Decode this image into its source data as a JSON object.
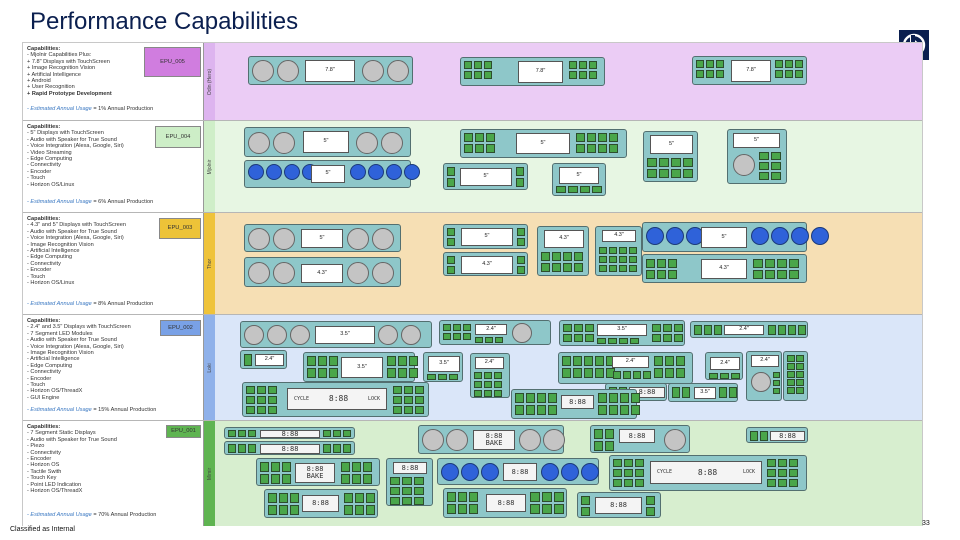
{
  "title": "Performance Capabilities",
  "footer": "Classified as Internal",
  "page_number": "33",
  "rows": [
    {
      "epu": "EPU_005",
      "strip_label": "Odin (Hero)",
      "band_color": "#ebccf5",
      "strip_color": "#ddb4ef",
      "epu_color": "#d07ddf",
      "caps_title": "Capabilities:",
      "caps": [
        "- Mjolnir Capabilities Plus:",
        "+ 7.8\" Displays with TouchScreen",
        "+ Image Recognition Vision",
        "+ Artificial Intelligence",
        "+ Android",
        "+ User Recognition"
      ],
      "caps_bold": "+ Rapid Prototype Development",
      "usage_label": "- Estimated Annual Usage",
      "usage_value": " = 1% Annual Production"
    },
    {
      "epu": "EPU_004",
      "strip_label": "Mjolnir",
      "band_color": "#e7f6e3",
      "strip_color": "#cfeec8",
      "epu_color": "#cdeec7",
      "caps_title": "Capabilities:",
      "caps": [
        "- 5\" Displays with TouchScreen",
        "- Audio with Speaker for True Sound",
        "- Voice Integration (Alexa, Google, Siri)",
        "- Video Streaming",
        "- Edge Computing",
        "- Connectivity",
        "- Encoder",
        "- Touch",
        "- Horizon OS/Linux"
      ],
      "caps_bold": "",
      "usage_label": "- Estimated Annual Usage",
      "usage_value": " = 6% Annual Production"
    },
    {
      "epu": "EPU_003",
      "strip_label": "Thor",
      "band_color": "#f6dfb4",
      "strip_color": "#efc33a",
      "epu_color": "#edc338",
      "caps_title": "Capabilities:",
      "caps": [
        "- 4.3\" and 5\" Displays with TouchScreen",
        "- Audio with Speaker for True Sound",
        "- Voice Integration (Alexa, Google, Siri)",
        "- Image Recognition Vision",
        "- Artificial Intelligence",
        "- Edge Computing",
        "- Connectivity",
        "- Encoder",
        "- Touch",
        "- Horizon OS/Linux"
      ],
      "caps_bold": "",
      "usage_label": "- Estimated Annual Usage",
      "usage_value": " = 8% Annual Production"
    },
    {
      "epu": "EPU_002",
      "strip_label": "Loki",
      "band_color": "#dae6f9",
      "strip_color": "#8fb1ea",
      "epu_color": "#79a1e6",
      "caps_title": "Capabilities:",
      "caps": [
        "- 2.4\" and 3.5\" Displays with TouchScreen",
        "- 7 Segment LED Modules",
        "- Audio with Speaker for True Sound",
        "- Voice Integration (Alexa, Google, Siri)",
        "- Image Recognition Vision",
        "- Artificial Intelligence",
        "- Edge Computing",
        "- Connectivity",
        "- Encoder",
        "- Touch",
        "- Horizon OS/ThreadX",
        "- GUI Engine"
      ],
      "caps_bold": "",
      "usage_label": "- Estimated Annual Usage",
      "usage_value": " = 15% Annual Production"
    },
    {
      "epu": "EPU_001",
      "strip_label": "Mimir",
      "band_color": "#d7eecf",
      "strip_color": "#5fb451",
      "epu_color": "#5fb451",
      "caps_title": "Capabilities:",
      "caps": [
        "- 7 Segment Static Displays",
        "- Audio with Speaker for True Sound",
        "- Piezo",
        "- Connectivity",
        "- Encoder",
        "- Horizon OS",
        "- Tactile Swith",
        "- Touch Key",
        "- Point LED Indication",
        "- Horizon OS/ThreadX"
      ],
      "caps_bold": "",
      "usage_label": "- Estimated Annual Usage",
      "usage_value": " = 70% Annual Production"
    }
  ],
  "screen_labels": {
    "s78": "7.8\"",
    "s5": "5\"",
    "s43": "4.3\"",
    "s35": "3.5\"",
    "s24": "2.4\"",
    "seg": "8:88",
    "segbig": "8:88\nBAKE",
    "cycle": "CYCLE",
    "lock": "LOCK"
  },
  "colors": {
    "panel": "#8ec7c9",
    "button_green": "#4aa64a",
    "button_blue": "#2f62d9",
    "knob": "#c4c4c4",
    "title": "#0b1f4f"
  }
}
